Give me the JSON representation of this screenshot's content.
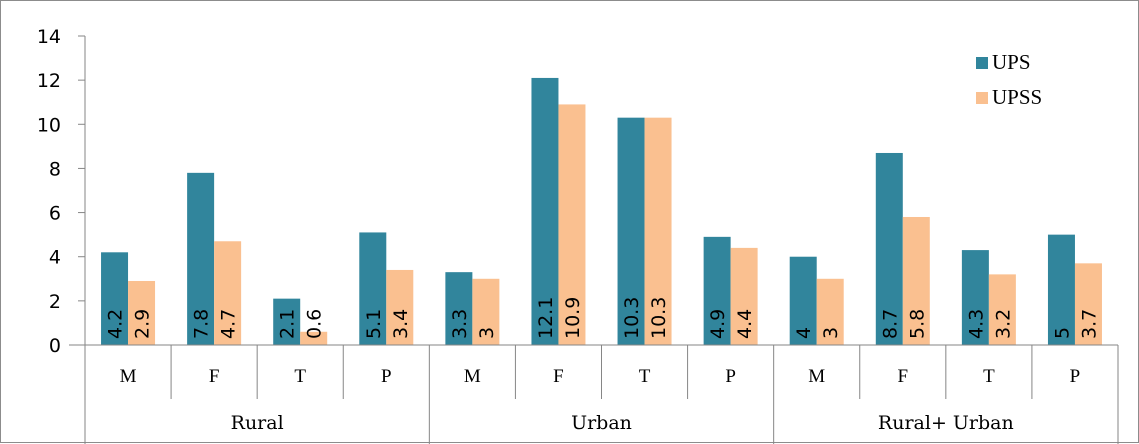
{
  "chart_data": {
    "type": "bar",
    "groups": [
      "Rural",
      "Urban",
      "Rural+ Urban"
    ],
    "categories": [
      "M",
      "F",
      "T",
      "P",
      "M",
      "F",
      "T",
      "P",
      "M",
      "F",
      "T",
      "P"
    ],
    "series": [
      {
        "name": "UPS",
        "color": "#31859c",
        "values": [
          4.2,
          7.8,
          2.1,
          5.1,
          3.3,
          12.1,
          10.3,
          4.9,
          4,
          8.7,
          4.3,
          5
        ],
        "labels": [
          "4.2",
          "7.8",
          "2.1",
          "5.1",
          "3.3",
          "12.1",
          "10.3",
          "4.9",
          "4",
          "8.7",
          "4.3",
          "5"
        ]
      },
      {
        "name": "UPSS",
        "color": "#fac090",
        "values": [
          2.9,
          4.7,
          0.6,
          3.4,
          3,
          10.9,
          10.3,
          4.4,
          3,
          5.8,
          3.2,
          3.7
        ],
        "labels": [
          "2.9",
          "4.7",
          "0.6",
          "3.4",
          "3",
          "10.9",
          "10.3",
          "4.4",
          "3",
          "5.8",
          "3.2",
          "3.7"
        ]
      }
    ],
    "yticks": [
      "0",
      "2",
      "4",
      "6",
      "8",
      "10",
      "12",
      "14"
    ],
    "ylim": [
      0,
      14
    ],
    "title": "",
    "xlabel": "",
    "ylabel": "",
    "legend_position": "top-right",
    "grid": false
  }
}
